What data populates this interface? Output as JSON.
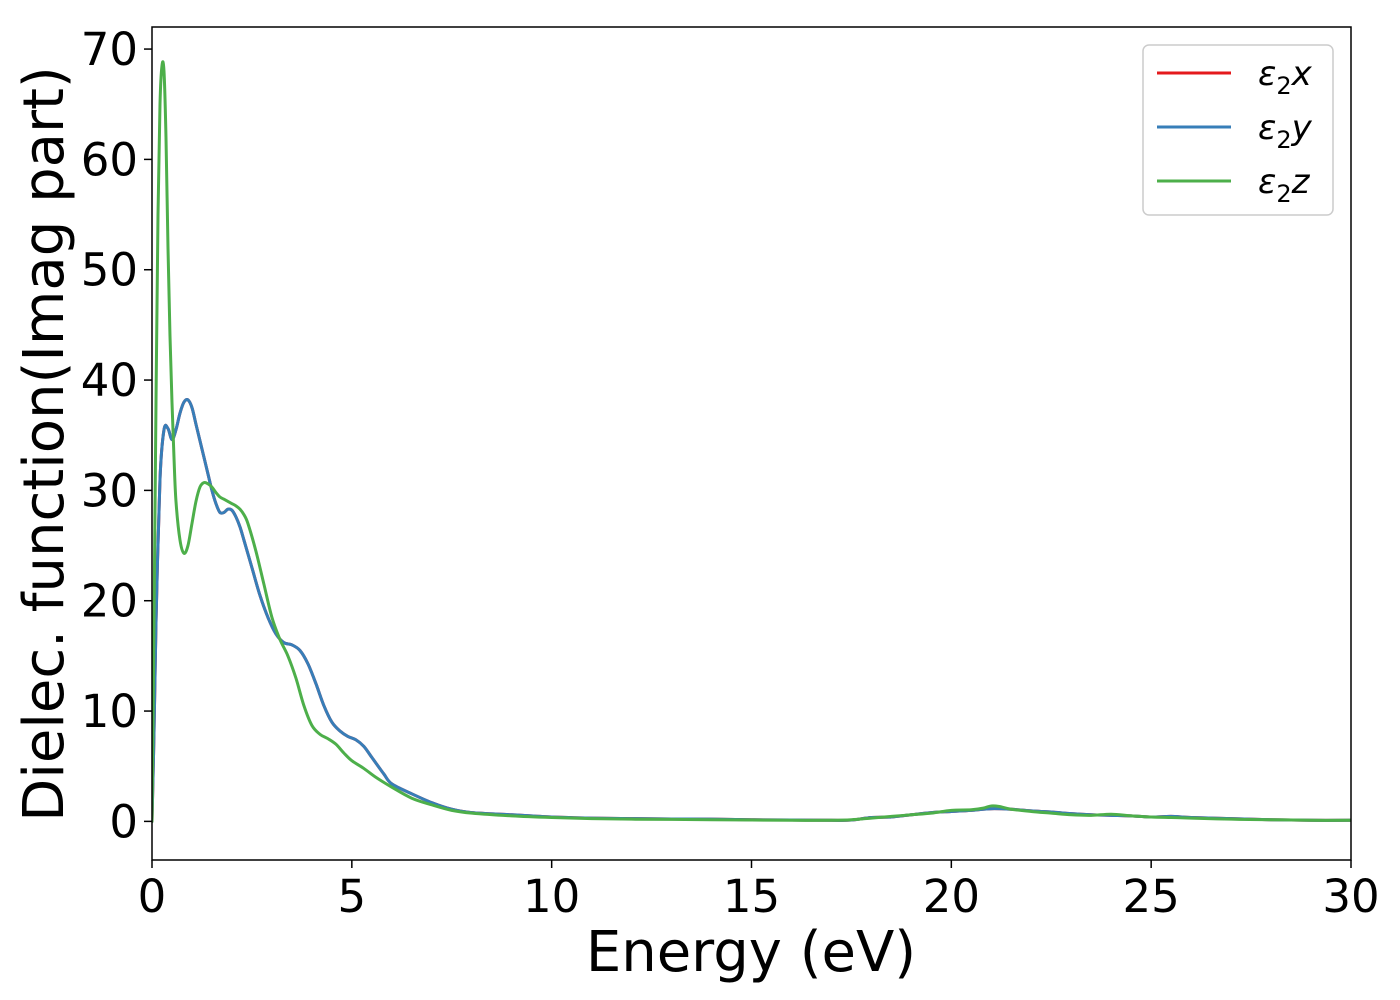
{
  "chart_data": {
    "type": "line",
    "title": "",
    "xlabel": "Energy (eV)",
    "ylabel": "Dielec. function(Imag part)",
    "xlim": [
      0,
      30
    ],
    "ylim": [
      -3.5,
      72
    ],
    "xticks": [
      0,
      5,
      10,
      15,
      20,
      25,
      30
    ],
    "yticks": [
      0,
      10,
      20,
      30,
      40,
      50,
      60,
      70
    ],
    "grid": false,
    "legend_position": "top-right",
    "series": [
      {
        "name": "ε2x",
        "legend_base": "ε",
        "legend_sub": "2",
        "legend_suffix": "x",
        "color": "#e41a1c",
        "x": [
          0,
          0.05,
          0.1,
          0.2,
          0.3,
          0.4,
          0.5,
          0.6,
          0.7,
          0.8,
          0.9,
          1.0,
          1.1,
          1.2,
          1.3,
          1.4,
          1.5,
          1.6,
          1.7,
          1.8,
          1.9,
          2.0,
          2.1,
          2.2,
          2.3,
          2.5,
          2.7,
          2.9,
          3.1,
          3.3,
          3.5,
          3.7,
          3.9,
          4.1,
          4.3,
          4.5,
          4.7,
          4.9,
          5.1,
          5.3,
          5.5,
          5.8,
          6.0,
          6.5,
          7.0,
          7.5,
          8.0,
          9.0,
          10.0,
          11.0,
          12.0,
          13.0,
          14.0,
          15.0,
          16.0,
          17.0,
          17.5,
          18.0,
          18.5,
          19.0,
          19.5,
          20.0,
          20.5,
          21.0,
          21.5,
          22.0,
          22.5,
          23.0,
          23.5,
          24.0,
          24.5,
          25.0,
          25.5,
          26.0,
          27.0,
          28.0,
          29.0,
          30.0
        ],
        "y": [
          0,
          8,
          18,
          31,
          35.5,
          35.6,
          34.6,
          35.5,
          37,
          38,
          38.2,
          37.5,
          36,
          34.5,
          33,
          31.5,
          30,
          28.8,
          28,
          28,
          28.3,
          28.2,
          27.6,
          26.7,
          25.5,
          23,
          20.5,
          18.5,
          17,
          16.2,
          16,
          15.5,
          14.3,
          12.5,
          10.5,
          9,
          8.2,
          7.7,
          7.4,
          6.8,
          5.8,
          4.3,
          3.4,
          2.5,
          1.7,
          1.1,
          0.8,
          0.6,
          0.4,
          0.3,
          0.25,
          0.22,
          0.2,
          0.15,
          0.12,
          0.1,
          0.12,
          0.35,
          0.4,
          0.6,
          0.8,
          0.9,
          1.0,
          1.15,
          1.1,
          0.95,
          0.85,
          0.7,
          0.6,
          0.55,
          0.5,
          0.4,
          0.45,
          0.35,
          0.25,
          0.15,
          0.1,
          0.1
        ]
      },
      {
        "name": "ε2y",
        "legend_base": "ε",
        "legend_sub": "2",
        "legend_suffix": "y",
        "color": "#377eb8",
        "x": [
          0,
          0.05,
          0.1,
          0.2,
          0.3,
          0.4,
          0.5,
          0.6,
          0.7,
          0.8,
          0.9,
          1.0,
          1.1,
          1.2,
          1.3,
          1.4,
          1.5,
          1.6,
          1.7,
          1.8,
          1.9,
          2.0,
          2.1,
          2.2,
          2.3,
          2.5,
          2.7,
          2.9,
          3.1,
          3.3,
          3.5,
          3.7,
          3.9,
          4.1,
          4.3,
          4.5,
          4.7,
          4.9,
          5.1,
          5.3,
          5.5,
          5.8,
          6.0,
          6.5,
          7.0,
          7.5,
          8.0,
          9.0,
          10.0,
          11.0,
          12.0,
          13.0,
          14.0,
          15.0,
          16.0,
          17.0,
          17.5,
          18.0,
          18.5,
          19.0,
          19.5,
          20.0,
          20.5,
          21.0,
          21.5,
          22.0,
          22.5,
          23.0,
          23.5,
          24.0,
          24.5,
          25.0,
          25.5,
          26.0,
          27.0,
          28.0,
          29.0,
          30.0
        ],
        "y": [
          0,
          8,
          18,
          31,
          35.5,
          35.6,
          34.6,
          35.5,
          37,
          38,
          38.2,
          37.5,
          36,
          34.5,
          33,
          31.5,
          30,
          28.8,
          28,
          28,
          28.3,
          28.2,
          27.6,
          26.7,
          25.5,
          23,
          20.5,
          18.5,
          17,
          16.2,
          16,
          15.5,
          14.3,
          12.5,
          10.5,
          9,
          8.2,
          7.7,
          7.4,
          6.8,
          5.8,
          4.3,
          3.4,
          2.5,
          1.7,
          1.1,
          0.8,
          0.6,
          0.4,
          0.3,
          0.25,
          0.22,
          0.2,
          0.15,
          0.12,
          0.1,
          0.12,
          0.35,
          0.4,
          0.6,
          0.8,
          0.9,
          1.0,
          1.15,
          1.1,
          0.95,
          0.85,
          0.7,
          0.6,
          0.55,
          0.5,
          0.4,
          0.45,
          0.35,
          0.25,
          0.15,
          0.1,
          0.1
        ]
      },
      {
        "name": "ε2z",
        "legend_base": "ε",
        "legend_sub": "2",
        "legend_suffix": "z",
        "color": "#4daf4a",
        "x": [
          0,
          0.05,
          0.1,
          0.15,
          0.2,
          0.25,
          0.3,
          0.35,
          0.4,
          0.45,
          0.5,
          0.55,
          0.6,
          0.7,
          0.8,
          0.9,
          1.0,
          1.1,
          1.2,
          1.3,
          1.4,
          1.5,
          1.6,
          1.7,
          1.8,
          1.9,
          2.0,
          2.1,
          2.2,
          2.3,
          2.4,
          2.6,
          2.8,
          3.0,
          3.2,
          3.4,
          3.6,
          3.8,
          4.0,
          4.2,
          4.4,
          4.6,
          4.8,
          5.0,
          5.3,
          5.6,
          6.0,
          6.5,
          7.0,
          7.5,
          8.0,
          9.0,
          10.0,
          11.0,
          12.0,
          13.0,
          14.0,
          15.0,
          16.0,
          17.0,
          17.5,
          18.0,
          18.5,
          19.0,
          19.5,
          20.0,
          20.5,
          20.8,
          21.0,
          21.2,
          21.5,
          22.0,
          22.5,
          23.0,
          23.5,
          24.0,
          24.5,
          25.0,
          25.5,
          26.0,
          27.0,
          28.0,
          29.0,
          30.0
        ],
        "y": [
          0,
          18,
          38,
          55,
          65,
          68.5,
          68,
          62,
          52,
          44,
          38,
          33,
          29,
          25.5,
          24.3,
          25,
          27,
          29,
          30.3,
          30.7,
          30.6,
          30.3,
          29.8,
          29.4,
          29.2,
          29,
          28.8,
          28.6,
          28.3,
          27.8,
          27,
          24.5,
          21.5,
          18.5,
          16.5,
          15,
          13,
          10.5,
          8.7,
          7.9,
          7.5,
          7.0,
          6.2,
          5.5,
          4.8,
          4.0,
          3.1,
          2.1,
          1.5,
          1.0,
          0.75,
          0.5,
          0.35,
          0.25,
          0.2,
          0.18,
          0.15,
          0.12,
          0.1,
          0.1,
          0.15,
          0.3,
          0.45,
          0.6,
          0.75,
          1.0,
          1.05,
          1.2,
          1.4,
          1.35,
          1.1,
          0.9,
          0.75,
          0.6,
          0.55,
          0.65,
          0.5,
          0.4,
          0.35,
          0.3,
          0.2,
          0.15,
          0.1,
          0.1
        ]
      }
    ]
  }
}
